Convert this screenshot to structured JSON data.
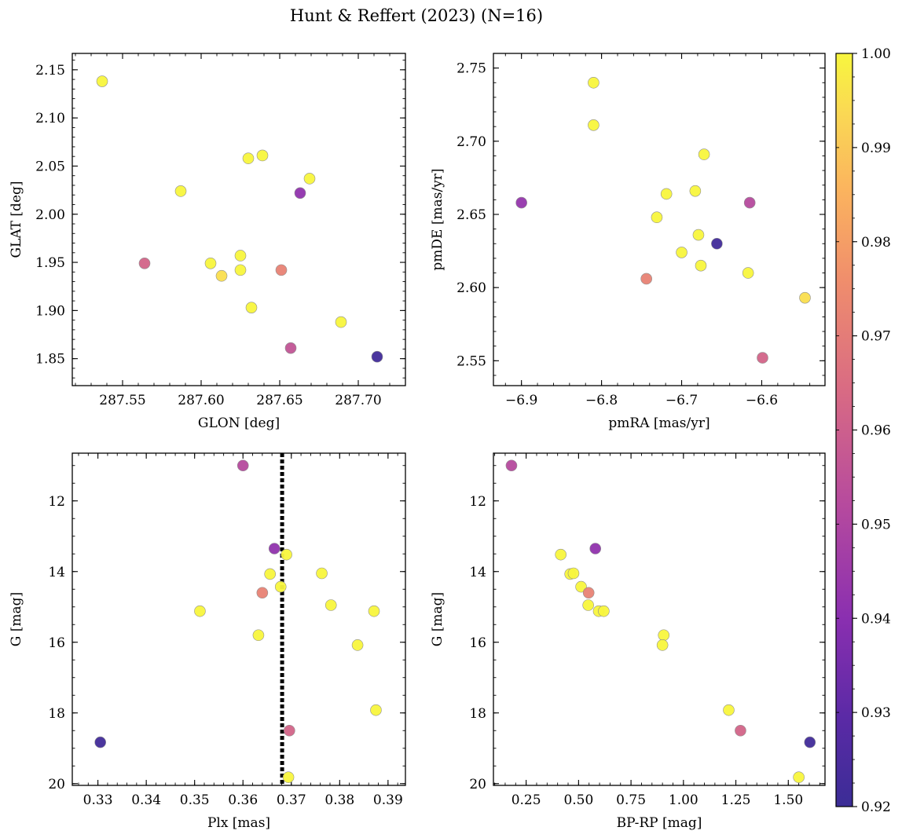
{
  "figure": {
    "title": "Hunt & Reffert (2023) (N=16)"
  },
  "colorbar": {
    "min": 0.92,
    "max": 1.0,
    "colormap": "plasma",
    "ticks": [
      "0.92",
      "0.93",
      "0.94",
      "0.95",
      "0.96",
      "0.97",
      "0.98",
      "0.99",
      "1.00"
    ]
  },
  "chart_data": [
    {
      "type": "scatter",
      "xlabel": "GLON [deg]",
      "ylabel": "GLAT [deg]",
      "xlim": [
        287.518,
        287.73
      ],
      "ylim": [
        1.822,
        2.167
      ],
      "xticks": [
        "287.55",
        "287.60",
        "287.65",
        "287.70"
      ],
      "xtick_values": [
        287.55,
        287.6,
        287.65,
        287.7
      ],
      "yticks": [
        "1.85",
        "1.90",
        "1.95",
        "2.00",
        "2.05",
        "2.10",
        "2.15"
      ],
      "ytick_values": [
        1.85,
        1.9,
        1.95,
        2.0,
        2.05,
        2.1,
        2.15
      ],
      "y_inverted": false,
      "points": [
        {
          "x": 287.537,
          "y": 2.138,
          "c": 1.0
        },
        {
          "x": 287.587,
          "y": 2.024,
          "c": 1.0
        },
        {
          "x": 287.63,
          "y": 2.058,
          "c": 1.0
        },
        {
          "x": 287.639,
          "y": 2.061,
          "c": 1.0
        },
        {
          "x": 287.669,
          "y": 2.037,
          "c": 1.0
        },
        {
          "x": 287.663,
          "y": 2.022,
          "c": 0.942
        },
        {
          "x": 287.564,
          "y": 1.949,
          "c": 0.962
        },
        {
          "x": 287.606,
          "y": 1.949,
          "c": 1.0
        },
        {
          "x": 287.613,
          "y": 1.936,
          "c": 0.995
        },
        {
          "x": 287.625,
          "y": 1.957,
          "c": 1.0
        },
        {
          "x": 287.625,
          "y": 1.942,
          "c": 1.0
        },
        {
          "x": 287.651,
          "y": 1.942,
          "c": 0.972
        },
        {
          "x": 287.632,
          "y": 1.903,
          "c": 1.0
        },
        {
          "x": 287.689,
          "y": 1.888,
          "c": 1.0
        },
        {
          "x": 287.657,
          "y": 1.861,
          "c": 0.956
        },
        {
          "x": 287.712,
          "y": 1.852,
          "c": 0.922
        }
      ]
    },
    {
      "type": "scatter",
      "xlabel": "pmRA [mas/yr]",
      "ylabel": "pmDE [mas/yr]",
      "xlim": [
        -6.935,
        -6.521
      ],
      "ylim": [
        2.533,
        2.76
      ],
      "xticks": [
        "−6.9",
        "−6.8",
        "−6.7",
        "−6.6"
      ],
      "xtick_values": [
        -6.9,
        -6.8,
        -6.7,
        -6.6
      ],
      "yticks": [
        "2.55",
        "2.60",
        "2.65",
        "2.70",
        "2.75"
      ],
      "ytick_values": [
        2.55,
        2.6,
        2.65,
        2.7,
        2.75
      ],
      "y_inverted": false,
      "points": [
        {
          "x": -6.81,
          "y": 2.74,
          "c": 1.0
        },
        {
          "x": -6.81,
          "y": 2.711,
          "c": 1.0
        },
        {
          "x": -6.672,
          "y": 2.691,
          "c": 1.0
        },
        {
          "x": -6.9,
          "y": 2.658,
          "c": 0.943
        },
        {
          "x": -6.719,
          "y": 2.664,
          "c": 1.0
        },
        {
          "x": -6.683,
          "y": 2.666,
          "c": 1.0
        },
        {
          "x": -6.731,
          "y": 2.648,
          "c": 1.0
        },
        {
          "x": -6.615,
          "y": 2.658,
          "c": 0.952
        },
        {
          "x": -6.679,
          "y": 2.636,
          "c": 1.0
        },
        {
          "x": -6.656,
          "y": 2.63,
          "c": 0.922
        },
        {
          "x": -6.7,
          "y": 2.624,
          "c": 1.0
        },
        {
          "x": -6.676,
          "y": 2.615,
          "c": 1.0
        },
        {
          "x": -6.617,
          "y": 2.61,
          "c": 1.0
        },
        {
          "x": -6.744,
          "y": 2.606,
          "c": 0.972
        },
        {
          "x": -6.546,
          "y": 2.593,
          "c": 0.995
        },
        {
          "x": -6.599,
          "y": 2.552,
          "c": 0.962
        }
      ]
    },
    {
      "type": "scatter",
      "xlabel": "Plx [mas]",
      "ylabel": "G [mag]",
      "xlim": [
        0.3247,
        0.3936
      ],
      "ylim": [
        20.05,
        10.65
      ],
      "xticks": [
        "0.33",
        "0.34",
        "0.35",
        "0.36",
        "0.37",
        "0.38",
        "0.39"
      ],
      "xtick_values": [
        0.33,
        0.34,
        0.35,
        0.36,
        0.37,
        0.38,
        0.39
      ],
      "yticks": [
        "12",
        "14",
        "16",
        "18",
        "20"
      ],
      "ytick_values": [
        12,
        14,
        16,
        18,
        20
      ],
      "y_inverted": true,
      "vline": 0.3681,
      "points": [
        {
          "x": 0.36,
          "y": 11.0,
          "c": 0.952
        },
        {
          "x": 0.3665,
          "y": 13.35,
          "c": 0.942
        },
        {
          "x": 0.369,
          "y": 13.52,
          "c": 1.0
        },
        {
          "x": 0.3656,
          "y": 14.07,
          "c": 1.0
        },
        {
          "x": 0.3763,
          "y": 14.05,
          "c": 1.0
        },
        {
          "x": 0.3678,
          "y": 14.43,
          "c": 1.0
        },
        {
          "x": 0.364,
          "y": 14.6,
          "c": 0.972
        },
        {
          "x": 0.3782,
          "y": 14.95,
          "c": 1.0
        },
        {
          "x": 0.3511,
          "y": 15.12,
          "c": 1.0
        },
        {
          "x": 0.3871,
          "y": 15.12,
          "c": 1.0
        },
        {
          "x": 0.3632,
          "y": 15.8,
          "c": 1.0
        },
        {
          "x": 0.3837,
          "y": 16.08,
          "c": 1.0
        },
        {
          "x": 0.3875,
          "y": 17.92,
          "c": 1.0
        },
        {
          "x": 0.3696,
          "y": 18.5,
          "c": 0.962
        },
        {
          "x": 0.3305,
          "y": 18.83,
          "c": 0.922
        },
        {
          "x": 0.3694,
          "y": 19.82,
          "c": 1.0
        }
      ]
    },
    {
      "type": "scatter",
      "xlabel": "BP-RP [mag]",
      "ylabel": "G [mag]",
      "xlim": [
        0.094,
        1.675
      ],
      "ylim": [
        20.05,
        10.65
      ],
      "xticks": [
        "0.25",
        "0.50",
        "0.75",
        "1.00",
        "1.25",
        "1.50"
      ],
      "xtick_values": [
        0.25,
        0.5,
        0.75,
        1.0,
        1.25,
        1.5
      ],
      "yticks": [
        "12",
        "14",
        "16",
        "18",
        "20"
      ],
      "ytick_values": [
        12,
        14,
        16,
        18,
        20
      ],
      "y_inverted": true,
      "points": [
        {
          "x": 0.18,
          "y": 11.0,
          "c": 0.952
        },
        {
          "x": 0.58,
          "y": 13.35,
          "c": 0.942
        },
        {
          "x": 0.415,
          "y": 13.52,
          "c": 1.0
        },
        {
          "x": 0.46,
          "y": 14.07,
          "c": 1.0
        },
        {
          "x": 0.476,
          "y": 14.05,
          "c": 1.0
        },
        {
          "x": 0.512,
          "y": 14.43,
          "c": 1.0
        },
        {
          "x": 0.548,
          "y": 14.6,
          "c": 0.972
        },
        {
          "x": 0.546,
          "y": 14.95,
          "c": 1.0
        },
        {
          "x": 0.596,
          "y": 15.12,
          "c": 1.0
        },
        {
          "x": 0.62,
          "y": 15.12,
          "c": 1.0
        },
        {
          "x": 0.906,
          "y": 15.8,
          "c": 1.0
        },
        {
          "x": 0.9,
          "y": 16.08,
          "c": 1.0
        },
        {
          "x": 1.216,
          "y": 17.92,
          "c": 1.0
        },
        {
          "x": 1.272,
          "y": 18.5,
          "c": 0.962
        },
        {
          "x": 1.603,
          "y": 18.83,
          "c": 0.922
        },
        {
          "x": 1.55,
          "y": 19.82,
          "c": 1.0
        }
      ]
    }
  ]
}
